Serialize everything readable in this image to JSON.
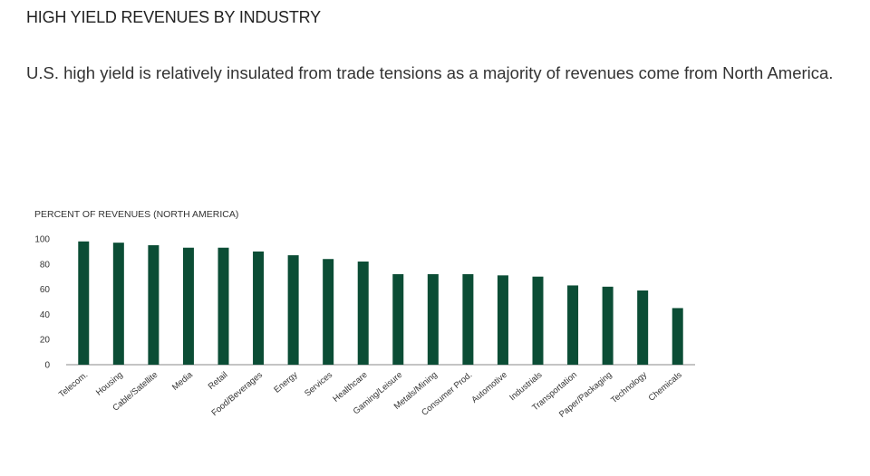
{
  "page": {
    "heading": "HIGH YIELD REVENUES BY INDUSTRY",
    "description": "U.S. high yield is relatively insulated from trade tensions as a majority of revenues come from North America."
  },
  "colors": {
    "bar": "#0b4d35",
    "axis": "#888888",
    "text": "#333333"
  },
  "chart_data": {
    "type": "bar",
    "title": "PERCENT OF REVENUES (NORTH AMERICA)",
    "xlabel": "",
    "ylabel": "",
    "ylim": [
      0,
      100
    ],
    "yticks": [
      0,
      20,
      40,
      60,
      80,
      100
    ],
    "grid": false,
    "legend": "none",
    "categories": [
      "Telecom.",
      "Housing",
      "Cable/Satellite",
      "Media",
      "Retail",
      "Food/Beverages",
      "Energy",
      "Services",
      "Healthcare",
      "Gaming/Leisure",
      "Metals/Mining",
      "Consumer Prod.",
      "Automotive",
      "Industrials",
      "Transportation",
      "Paper/Packaging",
      "Technology",
      "Chemicals"
    ],
    "values": [
      98,
      97,
      95,
      93,
      93,
      90,
      87,
      84,
      82,
      72,
      72,
      72,
      71,
      70,
      63,
      62,
      59,
      45
    ]
  }
}
